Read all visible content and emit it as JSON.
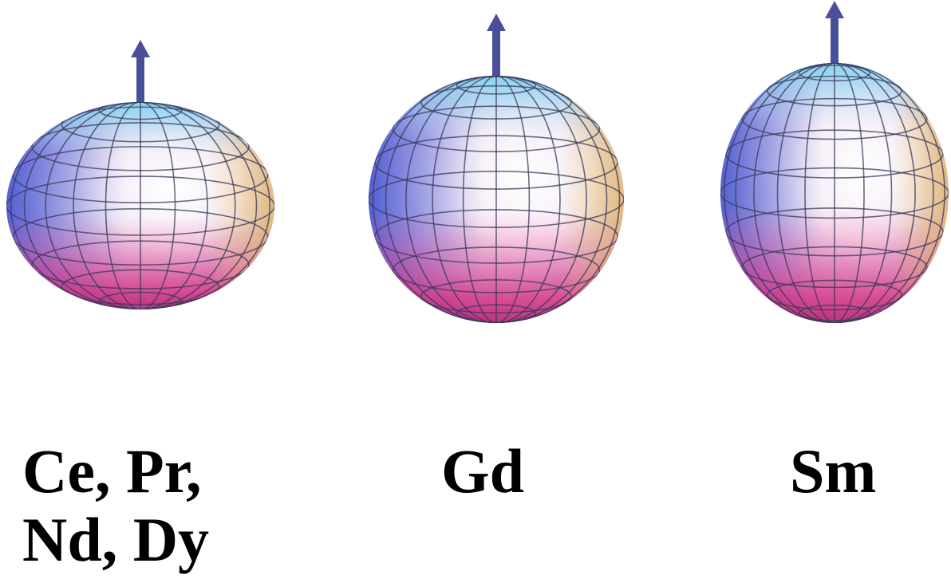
{
  "panels": [
    {
      "label_lines": [
        "Ce, Pr,",
        "Nd, Dy"
      ],
      "shape": "oblate"
    },
    {
      "label_lines": [
        "Gd"
      ],
      "shape": "spherical"
    },
    {
      "label_lines": [
        "Sm"
      ],
      "shape": "prolate"
    }
  ],
  "colors": {
    "arrow": "#4a4f9a",
    "grid": "#3a3a5a",
    "surface_top": "#8fd8f0",
    "surface_left": "#5a66d8",
    "surface_center": "#ffffff",
    "surface_bottom": "#e0307a",
    "surface_right": "#f2c070"
  }
}
